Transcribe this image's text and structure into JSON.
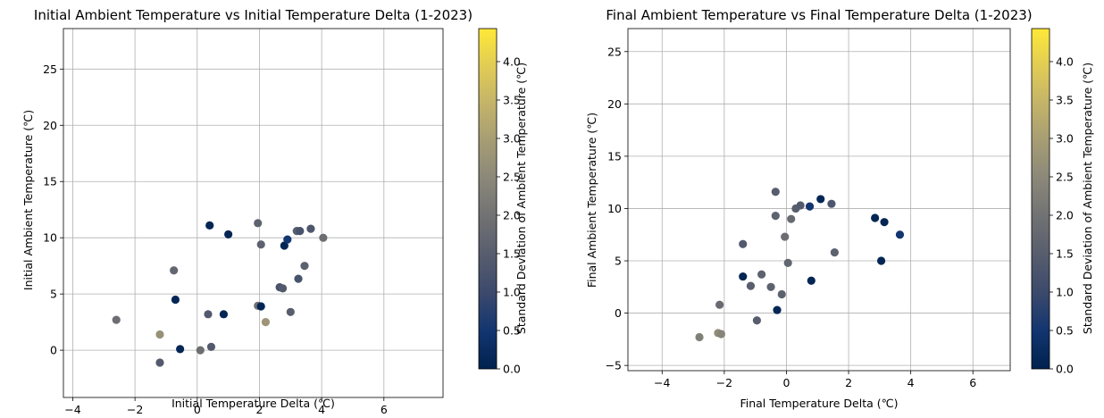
{
  "colormap": [
    "#00224e",
    "#123570",
    "#3b496c",
    "#575d6d",
    "#707173",
    "#8a8779",
    "#a59c74",
    "#c3b369",
    "#e1cc55",
    "#fee838"
  ],
  "chart_data": [
    {
      "type": "scatter",
      "title": "Initial Ambient Temperature vs Initial Temperature Delta (1-2023)",
      "xlabel": "Initial Temperature Delta (℃)",
      "ylabel": "Initial Ambient Temperature (℃)",
      "xlim": [
        -4.3,
        7.9
      ],
      "ylim": [
        -4.2,
        28.6
      ],
      "xticks": [
        -4,
        -2,
        0,
        2,
        4,
        6
      ],
      "yticks": [
        0,
        5,
        10,
        15,
        20,
        25
      ],
      "grid": true,
      "colorbar": {
        "label": "Standard Deviation of Ambient Temperature (℃)",
        "range": [
          0,
          4.43
        ],
        "ticks": [
          "0.0",
          "0.5",
          "1.0",
          "1.5",
          "2.0",
          "2.5",
          "3.0",
          "3.5",
          "4.0"
        ]
      },
      "points": [
        {
          "x": -2.6,
          "y": 2.7,
          "c": 1.9
        },
        {
          "x": -1.2,
          "y": 1.4,
          "c": 2.7
        },
        {
          "x": -1.2,
          "y": -1.1,
          "c": 1.4
        },
        {
          "x": -0.75,
          "y": 7.1,
          "c": 1.7
        },
        {
          "x": -0.7,
          "y": 4.5,
          "c": 0.1
        },
        {
          "x": -0.55,
          "y": 0.1,
          "c": 0.1
        },
        {
          "x": 0.1,
          "y": 0.0,
          "c": 1.9
        },
        {
          "x": 0.35,
          "y": 3.2,
          "c": 1.4
        },
        {
          "x": 0.4,
          "y": 11.1,
          "c": 0.1
        },
        {
          "x": 0.45,
          "y": 0.3,
          "c": 1.4
        },
        {
          "x": 0.85,
          "y": 3.2,
          "c": 0.1
        },
        {
          "x": 1.0,
          "y": 10.3,
          "c": 0.1
        },
        {
          "x": 1.95,
          "y": 11.3,
          "c": 1.6
        },
        {
          "x": 1.95,
          "y": 3.95,
          "c": 2.0
        },
        {
          "x": 2.05,
          "y": 9.4,
          "c": 1.6
        },
        {
          "x": 2.05,
          "y": 3.9,
          "c": 0.1
        },
        {
          "x": 2.2,
          "y": 2.5,
          "c": 2.8
        },
        {
          "x": 2.65,
          "y": 5.6,
          "c": 1.2
        },
        {
          "x": 2.75,
          "y": 5.5,
          "c": 1.4
        },
        {
          "x": 2.8,
          "y": 9.3,
          "c": 0.1
        },
        {
          "x": 2.9,
          "y": 9.85,
          "c": 0.5
        },
        {
          "x": 3.0,
          "y": 3.4,
          "c": 1.5
        },
        {
          "x": 3.2,
          "y": 10.6,
          "c": 1.5
        },
        {
          "x": 3.3,
          "y": 10.6,
          "c": 1.2
        },
        {
          "x": 3.25,
          "y": 6.35,
          "c": 1.2
        },
        {
          "x": 3.45,
          "y": 7.5,
          "c": 1.6
        },
        {
          "x": 3.65,
          "y": 10.8,
          "c": 1.3
        },
        {
          "x": 4.05,
          "y": 10.0,
          "c": 1.9
        }
      ]
    },
    {
      "type": "scatter",
      "title": "Final Ambient Temperature vs Final Temperature Delta (1-2023)",
      "xlabel": "Final Temperature Delta (℃)",
      "ylabel": "Final Ambient Temperature (℃)",
      "xlim": [
        -5.1,
        7.2
      ],
      "ylim": [
        -5.5,
        27.2
      ],
      "xticks": [
        -4,
        -2,
        0,
        2,
        4,
        6
      ],
      "yticks": [
        -5,
        0,
        5,
        10,
        15,
        20,
        25
      ],
      "grid": true,
      "colorbar": {
        "label": "Standard Deviation of Ambient Temperature (℃)",
        "range": [
          0,
          4.43
        ],
        "ticks": [
          "0.0",
          "0.5",
          "1.0",
          "1.5",
          "2.0",
          "2.5",
          "3.0",
          "3.5",
          "4.0"
        ]
      },
      "points": [
        {
          "x": -2.8,
          "y": -2.3,
          "c": 2.3
        },
        {
          "x": -2.2,
          "y": -1.9,
          "c": 2.6
        },
        {
          "x": -2.1,
          "y": -2.0,
          "c": 2.4
        },
        {
          "x": -2.15,
          "y": 0.8,
          "c": 1.8
        },
        {
          "x": -1.4,
          "y": 6.6,
          "c": 1.4
        },
        {
          "x": -1.4,
          "y": 3.5,
          "c": 0.1
        },
        {
          "x": -1.15,
          "y": 2.6,
          "c": 1.5
        },
        {
          "x": -0.95,
          "y": -0.7,
          "c": 1.5
        },
        {
          "x": -0.8,
          "y": 3.7,
          "c": 1.6
        },
        {
          "x": -0.5,
          "y": 2.5,
          "c": 1.6
        },
        {
          "x": -0.35,
          "y": 11.6,
          "c": 1.5
        },
        {
          "x": -0.35,
          "y": 9.3,
          "c": 1.6
        },
        {
          "x": -0.3,
          "y": 0.3,
          "c": 0.1
        },
        {
          "x": -0.15,
          "y": 1.8,
          "c": 1.6
        },
        {
          "x": -0.05,
          "y": 7.3,
          "c": 1.9
        },
        {
          "x": 0.05,
          "y": 4.8,
          "c": 1.7
        },
        {
          "x": 0.15,
          "y": 9.0,
          "c": 1.8
        },
        {
          "x": 0.3,
          "y": 10.0,
          "c": 1.5
        },
        {
          "x": 0.45,
          "y": 10.3,
          "c": 1.4
        },
        {
          "x": 0.75,
          "y": 10.2,
          "c": 0.5
        },
        {
          "x": 0.8,
          "y": 3.1,
          "c": 0.1
        },
        {
          "x": 1.1,
          "y": 10.9,
          "c": 0.1
        },
        {
          "x": 1.45,
          "y": 10.45,
          "c": 1.3
        },
        {
          "x": 1.55,
          "y": 5.8,
          "c": 1.6
        },
        {
          "x": 2.85,
          "y": 9.1,
          "c": 0.1
        },
        {
          "x": 3.05,
          "y": 5.0,
          "c": 0.1
        },
        {
          "x": 3.15,
          "y": 8.7,
          "c": 0.1
        },
        {
          "x": 3.65,
          "y": 7.5,
          "c": 0.5
        }
      ]
    }
  ]
}
